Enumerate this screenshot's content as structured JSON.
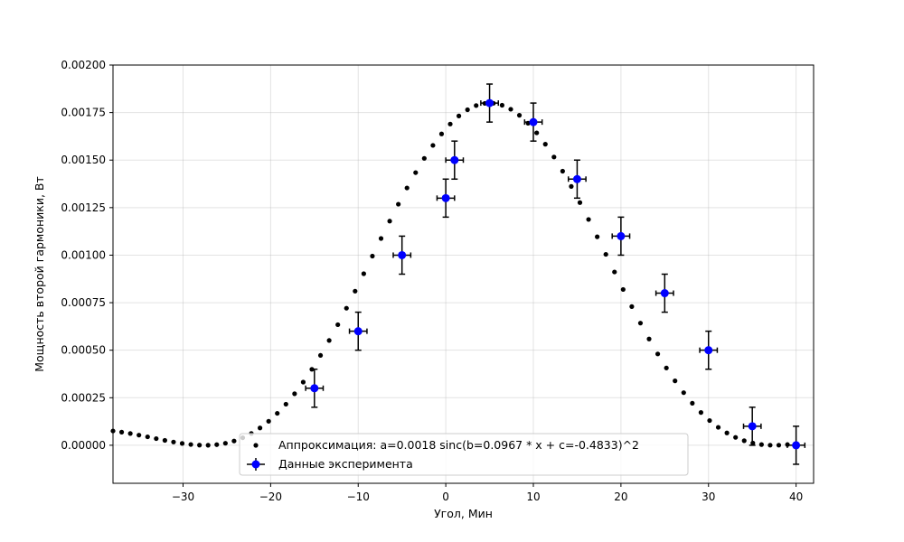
{
  "chart_data": {
    "type": "scatter",
    "xlabel": "Угол, Мин",
    "ylabel": "Мощность второй гармоники, Вт",
    "xlim": [
      -38,
      42
    ],
    "ylim": [
      -0.0002,
      0.002
    ],
    "xticks": [
      -30,
      -20,
      -10,
      0,
      10,
      20,
      30,
      40
    ],
    "xtick_labels": [
      "−30",
      "−20",
      "−10",
      "0",
      "10",
      "20",
      "30",
      "40"
    ],
    "yticks": [
      0,
      0.00025,
      0.0005,
      0.00075,
      0.001,
      0.00125,
      0.0015,
      0.00175,
      0.002
    ],
    "ytick_labels": [
      "0.00000",
      "0.00025",
      "0.00050",
      "0.00075",
      "0.00100",
      "0.00125",
      "0.00150",
      "0.00175",
      "0.00200"
    ],
    "grid": true,
    "legend_position": "lower-center",
    "series": [
      {
        "name": "Аппроксимация: a=0.0018 sinc(b=0.0967 * x + c=-0.4833)^2",
        "kind": "fit-dots",
        "color": "#000000",
        "model": {
          "a": 0.0018,
          "b": 0.0967,
          "c": -0.4833,
          "formula": "a*sinc(b*x+c)^2"
        },
        "x_range": [
          -38,
          40
        ],
        "point_count": 80
      },
      {
        "name": "Данные эксперимента",
        "kind": "errorbar",
        "color": "#0000ff",
        "x": [
          -15,
          -10,
          -5,
          0,
          1,
          5,
          10,
          15,
          20,
          25,
          30,
          35,
          40
        ],
        "y": [
          0.0003,
          0.0006,
          0.001,
          0.0013,
          0.0015,
          0.0018,
          0.0017,
          0.0014,
          0.0011,
          0.0008,
          0.0005,
          0.0001,
          0.0
        ],
        "xerr": 1,
        "yerr": 0.0001
      }
    ]
  }
}
